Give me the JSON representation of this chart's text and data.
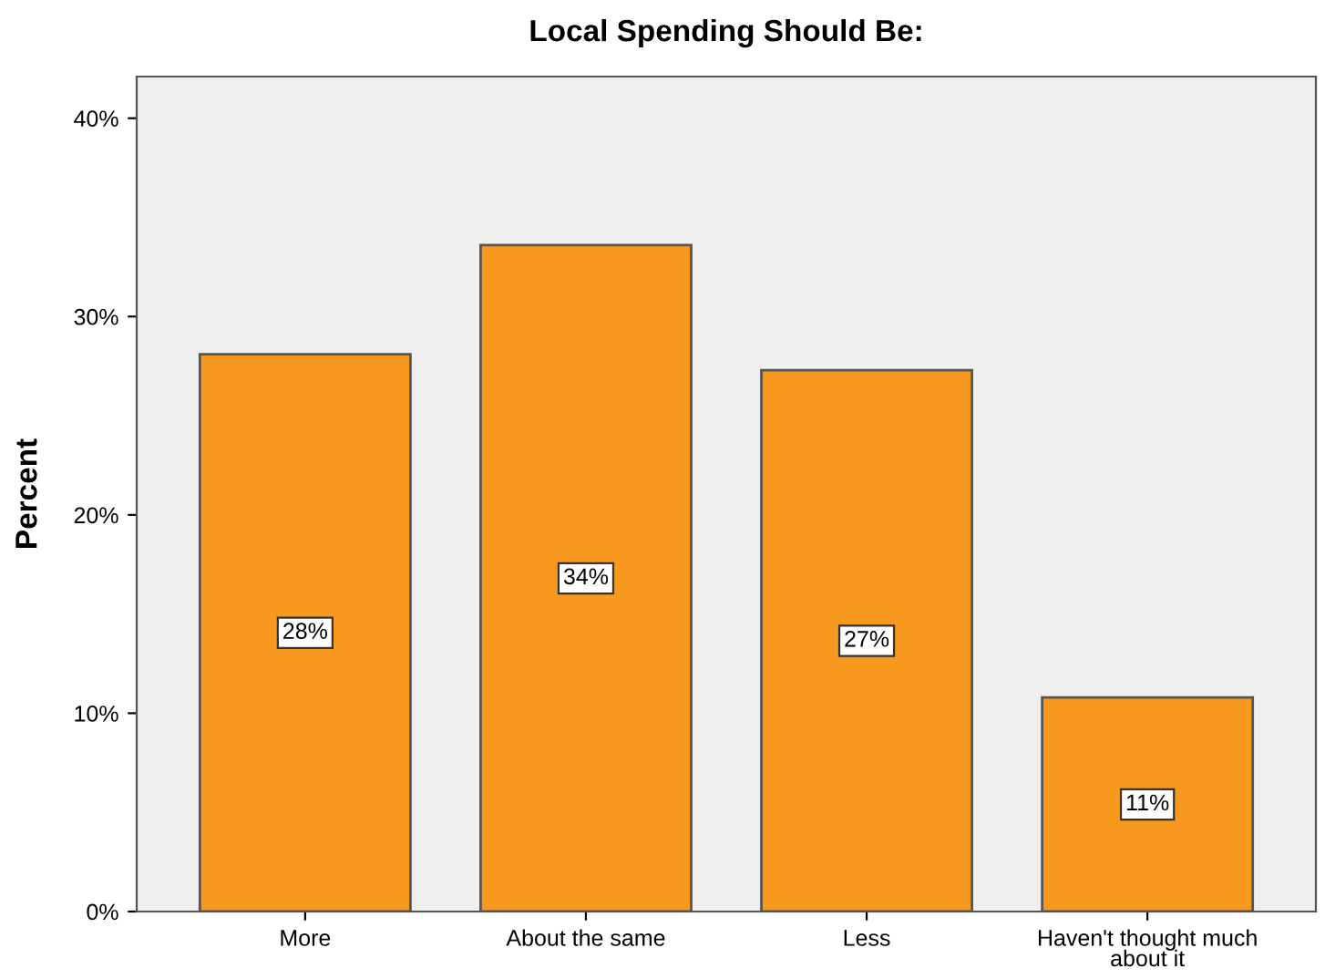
{
  "chart_data": {
    "type": "bar",
    "title": "Local Spending Should Be:",
    "ylabel": "Percent",
    "categories": [
      "More",
      "About the same",
      "Less",
      "Haven't thought much\nabout it"
    ],
    "values": [
      28.1,
      33.6,
      27.3,
      10.8
    ],
    "value_labels": [
      "28%",
      "34%",
      "27%",
      "11%"
    ],
    "color": "#f7991f",
    "ylim": [
      0,
      42.1
    ],
    "yticks": [
      {
        "value": 0,
        "label": "0%"
      },
      {
        "value": 10,
        "label": "10%"
      },
      {
        "value": 20,
        "label": "20%"
      },
      {
        "value": 30,
        "label": "30%"
      },
      {
        "value": 40,
        "label": "40%"
      }
    ],
    "grid": false
  }
}
